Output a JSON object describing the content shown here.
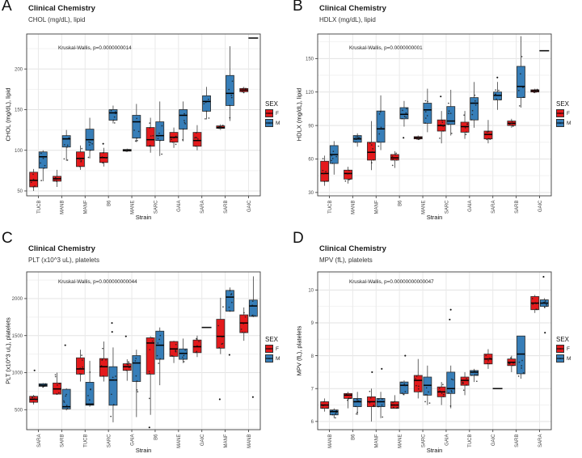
{
  "legend": {
    "title": "SEX",
    "items": [
      {
        "label": "F",
        "color": "#E41A1C"
      },
      {
        "label": "M",
        "color": "#377EB8"
      }
    ]
  },
  "chart_data": [
    {
      "type": "boxplot",
      "panel_label": "A",
      "title": "Clinical Chemistry",
      "subtitle": "CHOL (mg/dL), lipid",
      "annotation": "Kruskal-Wallis, p=0.0000000014",
      "xlabel": "Strain",
      "ylabel": "CHOL (mg/dL), lipid",
      "ylim": [
        44,
        243
      ],
      "yticks": [
        50,
        100,
        150,
        200
      ],
      "minor_step": 25,
      "categories": [
        "TUCB",
        "MANB",
        "MANF",
        "B6",
        "MANE",
        "SARC",
        "GAIA",
        "SARA",
        "SARB",
        "GAIC"
      ],
      "series": [
        {
          "name": "F",
          "boxes": [
            [
              50,
              55,
              63,
              73,
              77
            ],
            [
              55,
              62,
              65,
              68,
              76
            ],
            [
              76,
              80,
              90,
              98,
              106
            ],
            [
              80,
              85,
              91,
              97,
              103
            ],
            [
              98,
              99,
              100,
              101,
              102
            ],
            [
              97,
              105,
              113,
              128,
              140
            ],
            [
              103,
              110,
              116,
              122,
              128
            ],
            [
              100,
              105,
              112,
              122,
              131
            ],
            [
              125,
              127,
              128,
              130,
              132
            ],
            [
              170,
              172,
              174,
              176,
              178
            ]
          ],
          "outliers": [
            [],
            [],
            [],
            [
              108
            ],
            [],
            [],
            [],
            [],
            [],
            []
          ]
        },
        {
          "name": "M",
          "boxes": [
            [
              62,
              78,
              92,
              98,
              100
            ],
            [
              87,
              104,
              114,
              118,
              125
            ],
            [
              90,
              100,
              113,
              126,
              140
            ],
            [
              133,
              137,
              146,
              150,
              155
            ],
            [
              110,
              115,
              135,
              143,
              157
            ],
            [
              93,
              112,
              118,
              135,
              160
            ],
            [
              111,
              126,
              143,
              150,
              160
            ],
            [
              138,
              148,
              160,
              167,
              178
            ],
            [
              136,
              155,
              170,
              192,
              228
            ],
            [
              238,
              238,
              238,
              238,
              238
            ]
          ],
          "outliers": [
            [],
            [],
            [],
            [],
            [],
            [],
            [],
            [],
            [],
            []
          ]
        }
      ]
    },
    {
      "type": "boxplot",
      "panel_label": "B",
      "title": "Clinical Chemistry",
      "subtitle": "HDLX (mg/dL), lipid",
      "annotation": "Kruskal-Wallis, p=0.0000000001",
      "xlabel": "Strain",
      "ylabel": "HDLX (mg/dL), lipid",
      "ylim": [
        27,
        172
      ],
      "yticks": [
        30,
        60,
        90,
        120,
        150
      ],
      "minor_step": 15,
      "categories": [
        "TUCB",
        "MANB",
        "MANF",
        "B6",
        "MANE",
        "SARC",
        "GAIA",
        "SARA",
        "SARB",
        "GAIC"
      ],
      "series": [
        {
          "name": "F",
          "boxes": [
            [
              36,
              40,
              47,
              58,
              63
            ],
            [
              38,
              42,
              47,
              50,
              53
            ],
            [
              50,
              59,
              66,
              75,
              94
            ],
            [
              52,
              59,
              61,
              64,
              67
            ],
            [
              77,
              78,
              79,
              80,
              81
            ],
            [
              74,
              85,
              90,
              95,
              103
            ],
            [
              78,
              84,
              89,
              93,
              103
            ],
            [
              74,
              78,
              82,
              85,
              95
            ],
            [
              88,
              90,
              92,
              94,
              96
            ],
            [
              119,
              120,
              121,
              122,
              123
            ]
          ],
          "outliers": [
            [],
            [],
            [],
            [],
            [],
            [
              116
            ],
            [],
            [],
            [],
            []
          ]
        },
        {
          "name": "M",
          "boxes": [
            [
              46,
              56,
              64,
              72,
              76
            ],
            [
              71,
              75,
              78,
              81,
              83
            ],
            [
              68,
              75,
              87,
              103,
              117
            ],
            [
              89,
              96,
              100,
              106,
              112
            ],
            [
              84,
              92,
              104,
              110,
              123
            ],
            [
              81,
              91,
              94,
              107,
              122
            ],
            [
              88,
              95,
              110,
              115,
              129
            ],
            [
              104,
              113,
              117,
              120,
              129
            ],
            [
              106,
              115,
              125,
              143,
              170
            ],
            [
              157,
              157,
              157,
              157,
              157
            ]
          ],
          "outliers": [
            [],
            [],
            [],
            [
              79
            ],
            [],
            [],
            [],
            [
              133
            ],
            [],
            []
          ]
        }
      ]
    },
    {
      "type": "boxplot",
      "panel_label": "C",
      "title": "Clinical Chemistry",
      "subtitle": "PLT (x10^3 uL), platelets",
      "annotation": "Kruskal-Wallis, p=0.000000000044",
      "xlabel": "Strain",
      "ylabel": "PLT (x10^3 uL), platelets",
      "ylim": [
        230,
        2360
      ],
      "yticks": [
        500,
        1000,
        1500,
        2000
      ],
      "minor_step": 250,
      "categories": [
        "SARA",
        "SARB",
        "TUCB",
        "SARC",
        "GAIA",
        "B6",
        "MANE",
        "GAIC",
        "MANF",
        "MANB"
      ],
      "series": [
        {
          "name": "F",
          "boxes": [
            [
              570,
              600,
              640,
              680,
              700
            ],
            [
              700,
              710,
              780,
              860,
              1000
            ],
            [
              880,
              980,
              1050,
              1200,
              1310
            ],
            [
              880,
              950,
              1080,
              1190,
              1420
            ],
            [
              890,
              1030,
              1080,
              1120,
              1180
            ],
            [
              430,
              980,
              1400,
              1470,
              1490
            ],
            [
              1130,
              1220,
              1320,
              1420,
              1430
            ],
            [
              1210,
              1270,
              1350,
              1440,
              1500
            ],
            [
              1250,
              1330,
              1490,
              1720,
              2010
            ],
            [
              1430,
              1540,
              1670,
              1780,
              1880
            ]
          ],
          "outliers": [
            [
              1030
            ],
            [],
            [],
            [],
            [
              1490
            ],
            [
              260
            ],
            [],
            [],
            [
              640
            ],
            []
          ]
        },
        {
          "name": "M",
          "boxes": [
            [
              800,
              815,
              830,
              850,
              860
            ],
            [
              490,
              510,
              540,
              775,
              790
            ],
            [
              540,
              560,
              575,
              870,
              1160
            ],
            [
              330,
              560,
              900,
              1080,
              1340
            ],
            [
              400,
              880,
              1130,
              1230,
              1310
            ],
            [
              830,
              1180,
              1370,
              1560,
              1610
            ],
            [
              1130,
              1180,
              1260,
              1320,
              1460
            ],
            [
              1610,
              1610,
              1610,
              1610,
              1610
            ],
            [
              1820,
              1830,
              2020,
              2110,
              2150
            ],
            [
              1750,
              1760,
              1900,
              1980,
              2300
            ]
          ],
          "outliers": [
            [],
            [
              1370
            ],
            [],
            [
              1550,
              1670
            ],
            [],
            [],
            [],
            [],
            [
              1240
            ],
            [
              670
            ]
          ]
        }
      ]
    },
    {
      "type": "boxplot",
      "panel_label": "D",
      "title": "Clinical Chemistry",
      "subtitle": "MPV (fL), platelets",
      "annotation": "Kruskal-Wallis, p=0.00000000000047",
      "xlabel": "Strain",
      "ylabel": "MPV (fL), platelets",
      "ylim": [
        5.75,
        10.55
      ],
      "yticks": [
        6,
        7,
        8,
        9,
        10
      ],
      "minor_step": 0.5,
      "categories": [
        "MANB",
        "B6",
        "MANF",
        "MANE",
        "SARC",
        "GAIA",
        "TUCB",
        "GAIC",
        "SARB",
        "SARA"
      ],
      "series": [
        {
          "name": "F",
          "boxes": [
            [
              6.3,
              6.4,
              6.5,
              6.6,
              6.7
            ],
            [
              6.4,
              6.7,
              6.8,
              6.85,
              6.9
            ],
            [
              6.0,
              6.45,
              6.6,
              6.75,
              7.0
            ],
            [
              6.4,
              6.4,
              6.5,
              6.6,
              6.8
            ],
            [
              6.7,
              6.9,
              7.25,
              7.4,
              7.9
            ],
            [
              6.5,
              6.75,
              6.9,
              7.05,
              7.2
            ],
            [
              6.8,
              7.1,
              7.25,
              7.35,
              7.5
            ],
            [
              7.6,
              7.75,
              7.9,
              8.05,
              8.2
            ],
            [
              7.5,
              7.7,
              7.8,
              7.9,
              8.0
            ],
            [
              9.3,
              9.4,
              9.6,
              9.8,
              9.85
            ]
          ],
          "outliers": [
            [],
            [],
            [
              7.5
            ],
            [],
            [],
            [],
            [],
            [],
            [],
            []
          ]
        },
        {
          "name": "M",
          "boxes": [
            [
              6.1,
              6.2,
              6.3,
              6.35,
              6.4
            ],
            [
              6.2,
              6.45,
              6.6,
              6.7,
              6.9
            ],
            [
              6.1,
              6.45,
              6.6,
              6.7,
              6.9
            ],
            [
              6.8,
              6.85,
              7.1,
              7.2,
              7.25
            ],
            [
              6.5,
              6.8,
              7.1,
              7.35,
              7.7
            ],
            [
              6.4,
              6.85,
              7.0,
              7.5,
              7.7
            ],
            [
              7.2,
              7.4,
              7.5,
              7.55,
              7.6
            ],
            [
              7.0,
              7.0,
              7.0,
              7.0,
              7.0
            ],
            [
              7.3,
              7.45,
              8.05,
              8.6,
              8.6
            ],
            [
              9.45,
              9.5,
              9.6,
              9.7,
              9.75
            ]
          ],
          "outliers": [
            [],
            [],
            [
              7.6
            ],
            [
              8.0
            ],
            [],
            [
              9.1,
              9.4
            ],
            [],
            [],
            [],
            [
              10.4,
              8.7
            ]
          ]
        }
      ]
    }
  ]
}
